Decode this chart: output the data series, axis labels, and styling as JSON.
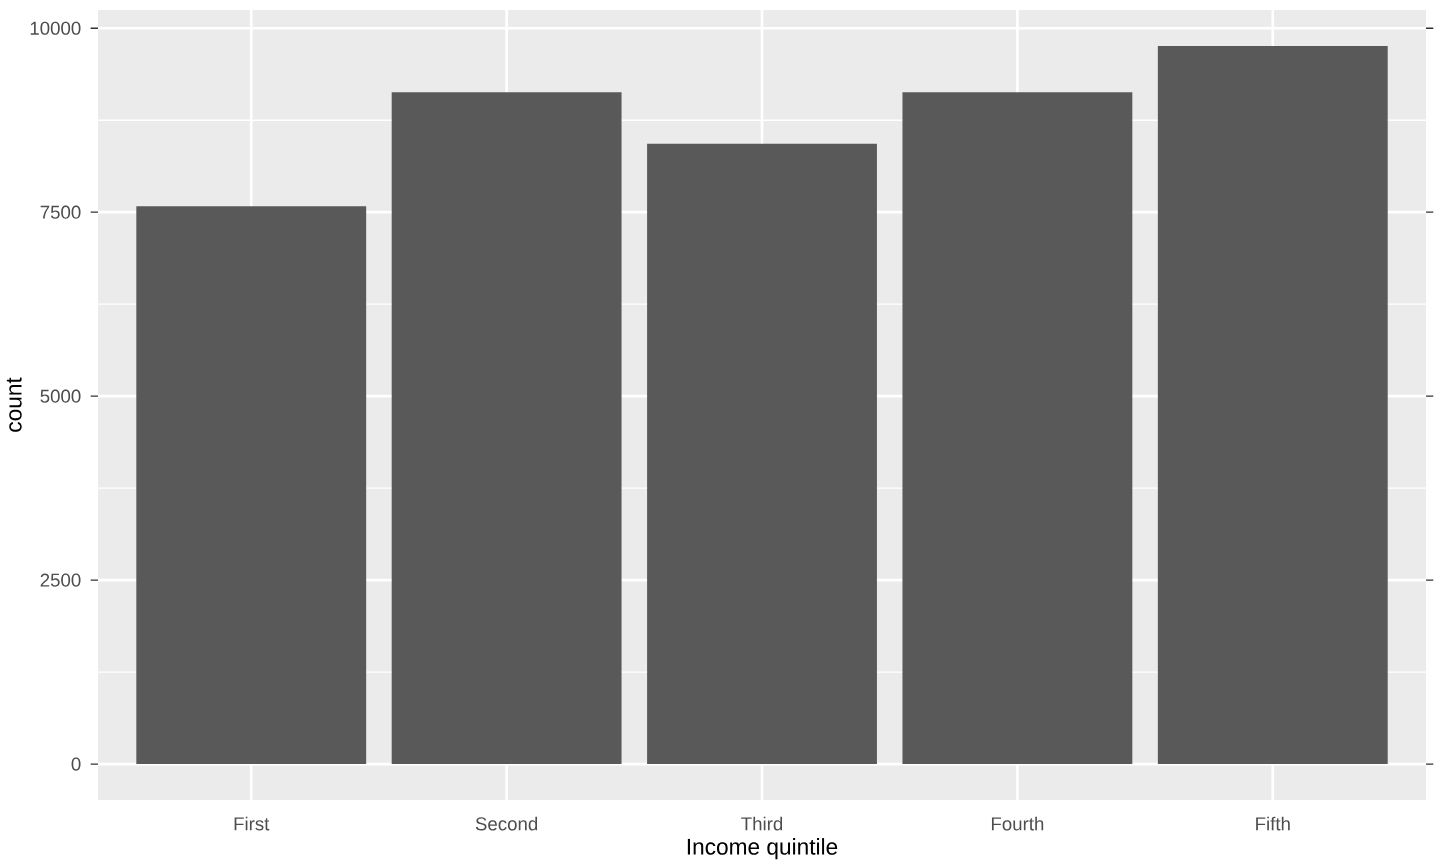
{
  "chart_data": {
    "type": "bar",
    "xlabel": "Income quintile",
    "ylabel": "count",
    "categories": [
      "First",
      "Second",
      "Third",
      "Fourth",
      "Fifth"
    ],
    "values": [
      7580,
      9130,
      8430,
      9130,
      9760
    ],
    "color": "#595959",
    "ylim": [
      -488,
      10248
    ],
    "yticks": [
      0,
      2500,
      5000,
      7500,
      10000
    ],
    "grid": true
  }
}
